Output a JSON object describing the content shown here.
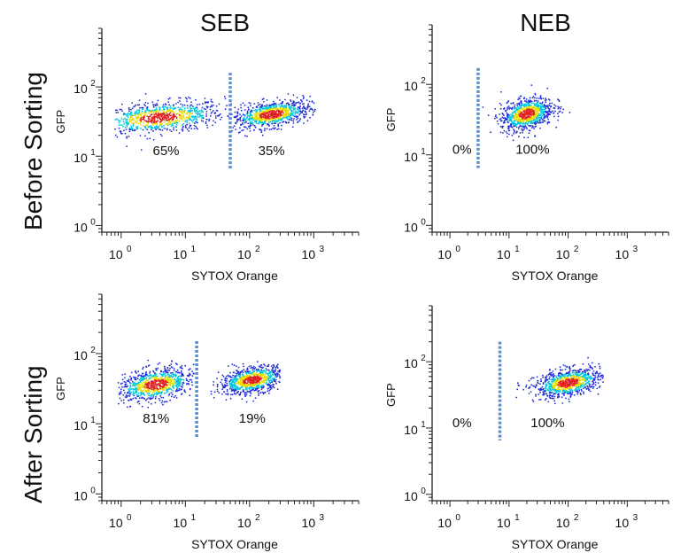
{
  "column_titles": [
    "SEB",
    "NEB"
  ],
  "row_titles": [
    "Before Sorting",
    "After Sorting"
  ],
  "colors": {
    "gate_line": "#5b8fc9",
    "density_low": "#1f2bd6",
    "density_mid": "#00c8e0",
    "density_high": "#e8dc00",
    "density_peak": "#e02020"
  },
  "chart_data": [
    {
      "type": "scatter",
      "column": "SEB",
      "row": "Before Sorting",
      "xlabel": "SYTOX Orange",
      "ylabel": "GFP",
      "x_scale": "log",
      "y_scale": "log",
      "xlim": [
        0.5,
        5000
      ],
      "ylim": [
        0.8,
        700
      ],
      "x_ticks": [
        1,
        10,
        100,
        1000
      ],
      "y_ticks": [
        1,
        10,
        100
      ],
      "x_tick_labels": [
        "10",
        "10",
        "10",
        "10"
      ],
      "x_tick_exponents": [
        "0",
        "1",
        "2",
        "3"
      ],
      "y_tick_labels": [
        "10",
        "10",
        "10"
      ],
      "y_tick_exponents": [
        "0",
        "1",
        "2"
      ],
      "gate_x": 50,
      "gate_y_range": [
        6.5,
        160
      ],
      "populations": [
        {
          "center_x": 4,
          "center_y": 36,
          "spread_x_decades": 0.5,
          "spread_y_decades": 0.11,
          "x_min": 0.8,
          "x_max": 55
        },
        {
          "center_x": 220,
          "center_y": 40,
          "spread_x_decades": 0.3,
          "spread_y_decades": 0.09,
          "x_min": 55,
          "x_max": 1100
        }
      ],
      "annotations": [
        {
          "text": "65%",
          "x": 5,
          "y": 12
        },
        {
          "text": "35%",
          "x": 220,
          "y": 12
        }
      ]
    },
    {
      "type": "scatter",
      "column": "NEB",
      "row": "Before Sorting",
      "xlabel": "SYTOX Orange",
      "ylabel": "GFP",
      "x_scale": "log",
      "y_scale": "log",
      "xlim": [
        0.5,
        5000
      ],
      "ylim": [
        0.8,
        700
      ],
      "x_ticks": [
        1,
        10,
        100,
        1000
      ],
      "y_ticks": [
        1,
        10,
        100
      ],
      "x_tick_labels": [
        "10",
        "10",
        "10",
        "10"
      ],
      "x_tick_exponents": [
        "0",
        "1",
        "2",
        "3"
      ],
      "y_tick_labels": [
        "10",
        "10",
        "10"
      ],
      "y_tick_exponents": [
        "0",
        "1",
        "2"
      ],
      "gate_x": 3,
      "gate_y_range": [
        6.5,
        170
      ],
      "populations": [
        {
          "center_x": 20,
          "center_y": 38,
          "spread_x_decades": 0.22,
          "spread_y_decades": 0.11,
          "x_min": 3.5,
          "x_max": 120
        }
      ],
      "annotations": [
        {
          "text": "0%",
          "x": 1.6,
          "y": 12
        },
        {
          "text": "100%",
          "x": 25,
          "y": 12
        }
      ]
    },
    {
      "type": "scatter",
      "column": "SEB",
      "row": "After Sorting",
      "xlabel": "SYTOX Orange",
      "ylabel": "GFP",
      "x_scale": "log",
      "y_scale": "log",
      "xlim": [
        0.5,
        5000
      ],
      "ylim": [
        0.8,
        700
      ],
      "x_ticks": [
        1,
        10,
        100,
        1000
      ],
      "y_ticks": [
        1,
        10,
        100
      ],
      "x_tick_labels": [
        "10",
        "10",
        "10",
        "10"
      ],
      "x_tick_exponents": [
        "0",
        "1",
        "2",
        "3"
      ],
      "y_tick_labels": [
        "10",
        "10",
        "10"
      ],
      "y_tick_exponents": [
        "0",
        "1",
        "2"
      ],
      "gate_x": 15,
      "gate_y_range": [
        6.5,
        150
      ],
      "populations": [
        {
          "center_x": 3.5,
          "center_y": 36,
          "spread_x_decades": 0.3,
          "spread_y_decades": 0.11,
          "x_min": 0.9,
          "x_max": 14
        },
        {
          "center_x": 110,
          "center_y": 42,
          "spread_x_decades": 0.25,
          "spread_y_decades": 0.09,
          "x_min": 18,
          "x_max": 300
        }
      ],
      "annotations": [
        {
          "text": "81%",
          "x": 3.5,
          "y": 12
        },
        {
          "text": "19%",
          "x": 110,
          "y": 12
        }
      ]
    },
    {
      "type": "scatter",
      "column": "NEB",
      "row": "After Sorting",
      "xlabel": "SYTOX Orange",
      "ylabel": "GFP",
      "x_scale": "log",
      "y_scale": "log",
      "xlim": [
        0.5,
        5000
      ],
      "ylim": [
        0.8,
        700
      ],
      "x_ticks": [
        1,
        10,
        100,
        1000
      ],
      "y_ticks": [
        1,
        10,
        100
      ],
      "x_tick_labels": [
        "10",
        "10",
        "10",
        "10"
      ],
      "x_tick_exponents": [
        "0",
        "1",
        "2",
        "3"
      ],
      "y_tick_labels": [
        "10",
        "10",
        "10"
      ],
      "y_tick_exponents": [
        "0",
        "1",
        "2"
      ],
      "gate_x": 7,
      "gate_y_range": [
        6.5,
        200
      ],
      "populations": [
        {
          "center_x": 100,
          "center_y": 48,
          "spread_x_decades": 0.28,
          "spread_y_decades": 0.1,
          "x_min": 8,
          "x_max": 400
        }
      ],
      "annotations": [
        {
          "text": "0%",
          "x": 1.6,
          "y": 12
        },
        {
          "text": "100%",
          "x": 45,
          "y": 12
        }
      ]
    }
  ]
}
